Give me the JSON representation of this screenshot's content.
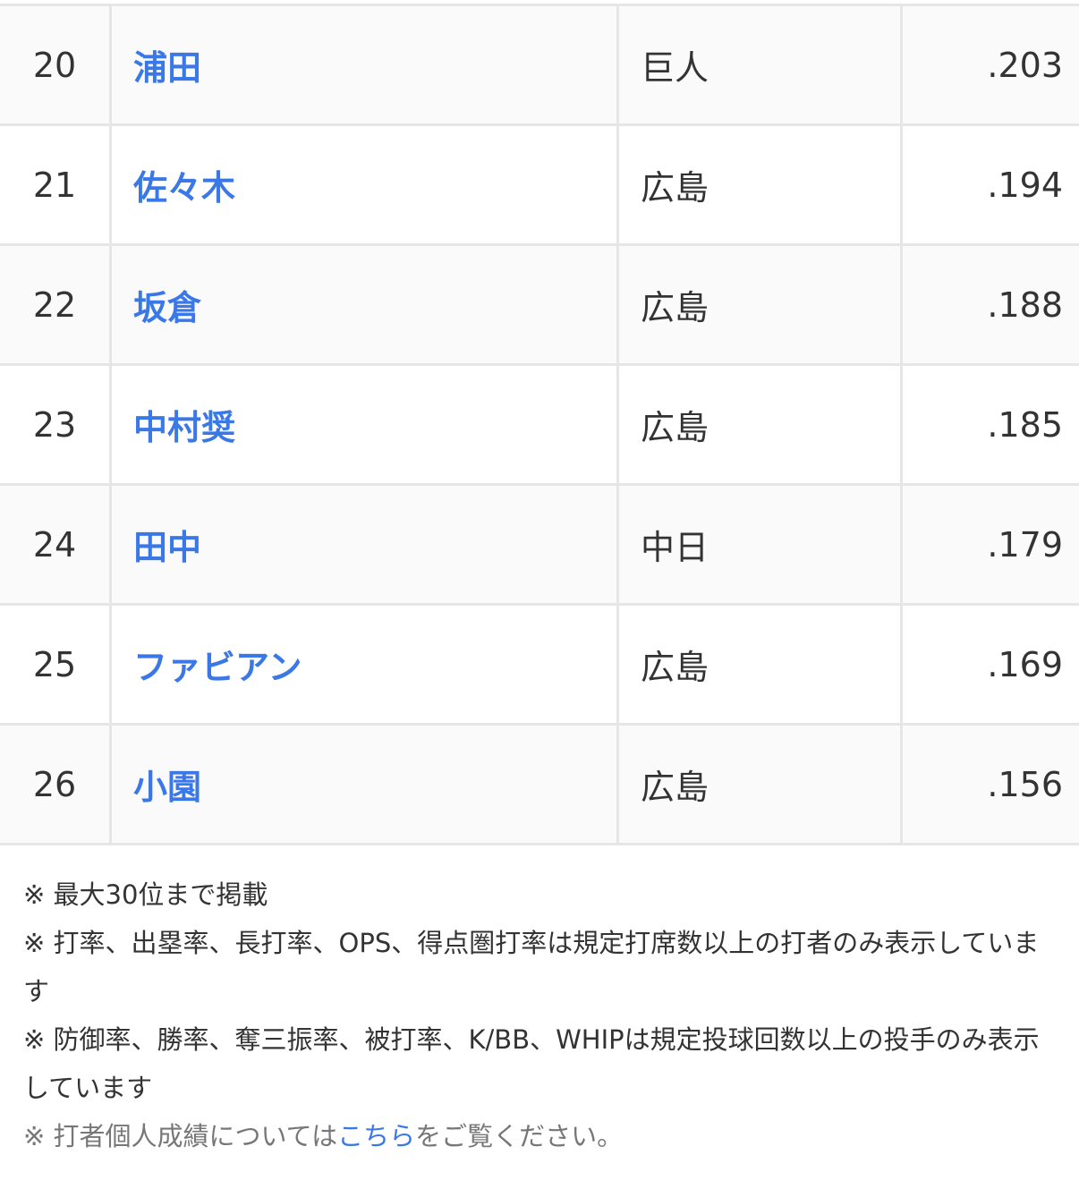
{
  "table": {
    "rows": [
      {
        "rank": "20",
        "name": "浦田",
        "team": "巨人",
        "avg": ".203"
      },
      {
        "rank": "21",
        "name": "佐々木",
        "team": "広島",
        "avg": ".194"
      },
      {
        "rank": "22",
        "name": "坂倉",
        "team": "広島",
        "avg": ".188"
      },
      {
        "rank": "23",
        "name": "中村奨",
        "team": "広島",
        "avg": ".185"
      },
      {
        "rank": "24",
        "name": "田中",
        "team": "中日",
        "avg": ".179"
      },
      {
        "rank": "25",
        "name": "ファビアン",
        "team": "広島",
        "avg": ".169"
      },
      {
        "rank": "26",
        "name": "小園",
        "team": "広島",
        "avg": ".156"
      }
    ]
  },
  "notes": {
    "n1": "※ 最大30位まで掲載",
    "n2": "※ 打率、出塁率、長打率、OPS、得点圏打率は規定打席数以上の打者のみ表示しています",
    "n3": "※ 防御率、勝率、奪三振率、被打率、K/BB、WHIPは規定投球回数以上の投手のみ表示しています",
    "n4_before": "※ 打者個人成績については",
    "n4_link": "こちら",
    "n4_after": "をご覧ください。"
  },
  "colors": {
    "link": "#3b78e7",
    "border": "#e6e6e6",
    "row_alt": "#fafafa"
  }
}
